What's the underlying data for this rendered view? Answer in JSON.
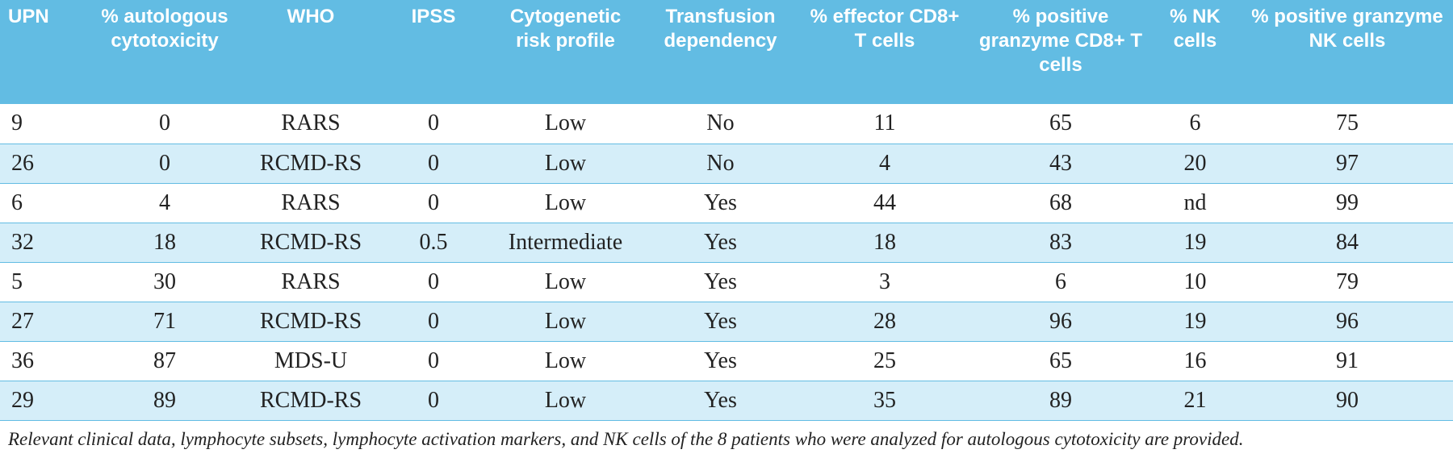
{
  "table": {
    "header": [
      "UPN",
      "% autologous cytotoxicity",
      "WHO",
      "IPSS",
      "Cytogenetic risk profile",
      "Transfusion dependency",
      "% effector CD8+ T cells",
      "% positive granzyme CD8+ T cells",
      "% NK cells",
      "% positive granzyme NK cells"
    ],
    "rows": [
      [
        "9",
        "0",
        "RARS",
        "0",
        "Low",
        "No",
        "11",
        "65",
        "6",
        "75"
      ],
      [
        "26",
        "0",
        "RCMD-RS",
        "0",
        "Low",
        "No",
        "4",
        "43",
        "20",
        "97"
      ],
      [
        "6",
        "4",
        "RARS",
        "0",
        "Low",
        "Yes",
        "44",
        "68",
        "nd",
        "99"
      ],
      [
        "32",
        "18",
        "RCMD-RS",
        "0.5",
        "Intermediate",
        "Yes",
        "18",
        "83",
        "19",
        "84"
      ],
      [
        "5",
        "30",
        "RARS",
        "0",
        "Low",
        "Yes",
        "3",
        "6",
        "10",
        "79"
      ],
      [
        "27",
        "71",
        "RCMD-RS",
        "0",
        "Low",
        "Yes",
        "28",
        "96",
        "19",
        "96"
      ],
      [
        "36",
        "87",
        "MDS-U",
        "0",
        "Low",
        "Yes",
        "25",
        "65",
        "16",
        "91"
      ],
      [
        "29",
        "89",
        "RCMD-RS",
        "0",
        "Low",
        "Yes",
        "35",
        "89",
        "21",
        "90"
      ]
    ],
    "caption": "Relevant clinical data, lymphocyte subsets, lymphocyte activation markers, and NK cells of the 8 patients who were analyzed for autologous cytotoxicity are provided."
  }
}
